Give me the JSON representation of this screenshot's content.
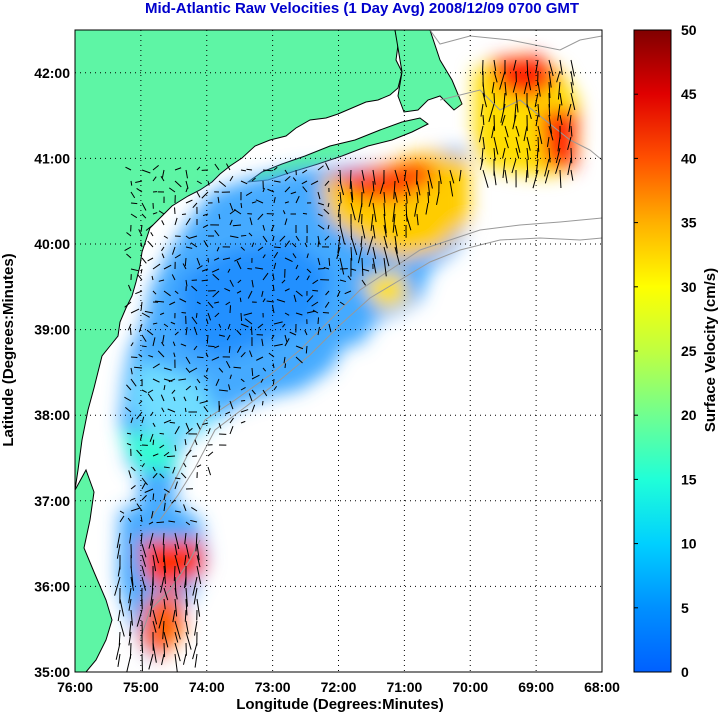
{
  "title": "Mid-Atlantic Raw Velocities (1 Day Avg) 2008/12/09 0700 GMT",
  "x_axis": {
    "label": "Longitude (Degrees:Minutes)",
    "ticks": [
      {
        "value": -76,
        "label": "76:00"
      },
      {
        "value": -75,
        "label": "75:00"
      },
      {
        "value": -74,
        "label": "74:00"
      },
      {
        "value": -73,
        "label": "73:00"
      },
      {
        "value": -72,
        "label": "72:00"
      },
      {
        "value": -71,
        "label": "71:00"
      },
      {
        "value": -70,
        "label": "70:00"
      },
      {
        "value": -69,
        "label": "69:00"
      },
      {
        "value": -68,
        "label": "68:00"
      }
    ],
    "range": [
      -76,
      -68
    ]
  },
  "y_axis": {
    "label": "Latitude (Degrees:Minutes)",
    "ticks": [
      {
        "value": 35,
        "label": "35:00"
      },
      {
        "value": 36,
        "label": "36:00"
      },
      {
        "value": 37,
        "label": "37:00"
      },
      {
        "value": 38,
        "label": "38:00"
      },
      {
        "value": 39,
        "label": "39:00"
      },
      {
        "value": 40,
        "label": "40:00"
      },
      {
        "value": 41,
        "label": "41:00"
      },
      {
        "value": 42,
        "label": "42:00"
      }
    ],
    "range": [
      35,
      42.5
    ]
  },
  "colorbar": {
    "label": "Surface Velocity (cm/s)",
    "ticks": [
      {
        "value": 0,
        "label": "0"
      },
      {
        "value": 5,
        "label": "5"
      },
      {
        "value": 10,
        "label": "10"
      },
      {
        "value": 15,
        "label": "15"
      },
      {
        "value": 20,
        "label": "20"
      },
      {
        "value": 25,
        "label": "25"
      },
      {
        "value": 30,
        "label": "30"
      },
      {
        "value": 35,
        "label": "35"
      },
      {
        "value": 40,
        "label": "40"
      },
      {
        "value": 45,
        "label": "45"
      },
      {
        "value": 50,
        "label": "50"
      }
    ],
    "range": [
      0,
      50
    ],
    "colormap": "jet"
  },
  "grid": "dotted",
  "colors": {
    "land": "#5ef5a5",
    "coastline": "#000000",
    "bathymetry": "#999999",
    "title": "#0000cc",
    "vectors": "#000000"
  }
}
